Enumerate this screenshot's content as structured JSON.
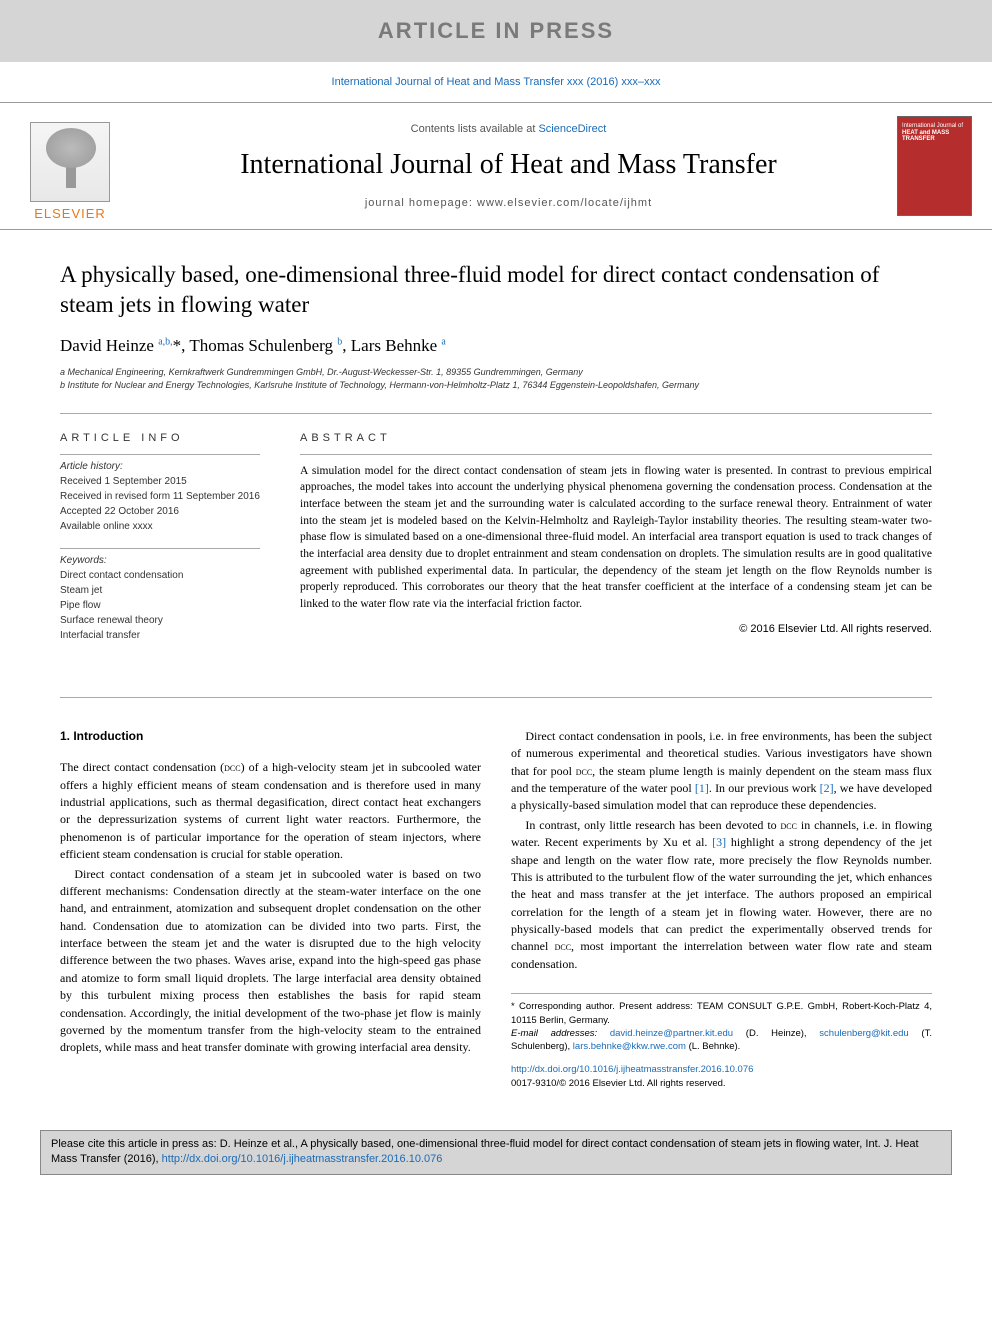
{
  "banner": {
    "text": "ARTICLE IN PRESS"
  },
  "citation_top": "International Journal of Heat and Mass Transfer xxx (2016) xxx–xxx",
  "masthead": {
    "contents_prefix": "Contents lists available at ",
    "contents_link": "ScienceDirect",
    "journal_title": "International Journal of Heat and Mass Transfer",
    "homepage_label": "journal homepage: ",
    "homepage_url": "www.elsevier.com/locate/ijhmt",
    "publisher_name": "ELSEVIER",
    "cover_text_line1": "International Journal of",
    "cover_text_line2": "HEAT and MASS",
    "cover_text_line3": "TRANSFER"
  },
  "paper": {
    "title": "A physically based, one-dimensional three-fluid model for direct contact condensation of steam jets in flowing water",
    "authors_html": "David Heinze <sup>a,b,</sup><span class='star'>*</span>, Thomas Schulenberg <sup>b</sup>, Lars Behnke <sup>a</sup>",
    "affiliations": [
      "a Mechanical Engineering, Kernkraftwerk Gundremmingen GmbH, Dr.-August-Weckesser-Str. 1, 89355 Gundremmingen, Germany",
      "b Institute for Nuclear and Energy Technologies, Karlsruhe Institute of Technology, Hermann-von-Helmholtz-Platz 1, 76344 Eggenstein-Leopoldshafen, Germany"
    ]
  },
  "article_info": {
    "heading": "ARTICLE INFO",
    "history_label": "Article history:",
    "history": [
      "Received 1 September 2015",
      "Received in revised form 11 September 2016",
      "Accepted 22 October 2016",
      "Available online xxxx"
    ],
    "keywords_label": "Keywords:",
    "keywords": [
      "Direct contact condensation",
      "Steam jet",
      "Pipe flow",
      "Surface renewal theory",
      "Interfacial transfer"
    ]
  },
  "abstract": {
    "heading": "ABSTRACT",
    "text": "A simulation model for the direct contact condensation of steam jets in flowing water is presented. In contrast to previous empirical approaches, the model takes into account the underlying physical phenomena governing the condensation process. Condensation at the interface between the steam jet and the surrounding water is calculated according to the surface renewal theory. Entrainment of water into the steam jet is modeled based on the Kelvin-Helmholtz and Rayleigh-Taylor instability theories. The resulting steam-water two-phase flow is simulated based on a one-dimensional three-fluid model. An interfacial area transport equation is used to track changes of the interfacial area density due to droplet entrainment and steam condensation on droplets. The simulation results are in good qualitative agreement with published experimental data. In particular, the dependency of the steam jet length on the flow Reynolds number is properly reproduced. This corroborates our theory that the heat transfer coefficient at the interface of a condensing steam jet can be linked to the water flow rate via the interfacial friction factor.",
    "copyright": "© 2016 Elsevier Ltd. All rights reserved."
  },
  "body": {
    "section1_heading": "1. Introduction",
    "p1": "The direct contact condensation (DCC) of a high-velocity steam jet in subcooled water offers a highly efficient means of steam condensation and is therefore used in many industrial applications, such as thermal degasification, direct contact heat exchangers or the depressurization systems of current light water reactors. Furthermore, the phenomenon is of particular importance for the operation of steam injectors, where efficient steam condensation is crucial for stable operation.",
    "p2": "Direct contact condensation of a steam jet in subcooled water is based on two different mechanisms: Condensation directly at the steam-water interface on the one hand, and entrainment, atomization and subsequent droplet condensation on the other hand. Condensation due to atomization can be divided into two parts. First, the interface between the steam jet and the water is disrupted due to the high velocity difference between the two phases. Waves arise, expand into the high-speed gas phase and atomize to form small liquid droplets. The large interfacial area density obtained by this turbulent mixing process then establishes the basis for rapid steam condensation. Accordingly, the initial development of the two-phase jet flow is mainly governed by the momentum transfer from the high-velocity steam to the entrained droplets, while mass and heat transfer dominate with growing interfacial area density.",
    "p3": "Direct contact condensation in pools, i.e. in free environments, has been the subject of numerous experimental and theoretical studies. Various investigators have shown that for pool DCC, the steam plume length is mainly dependent on the steam mass flux and the temperature of the water pool [1]. In our previous work [2], we have developed a physically-based simulation model that can reproduce these dependencies.",
    "p4": "In contrast, only little research has been devoted to DCC in channels, i.e. in flowing water. Recent experiments by Xu et al. [3] highlight a strong dependency of the jet shape and length on the water flow rate, more precisely the flow Reynolds number. This is attributed to the turbulent flow of the water surrounding the jet, which enhances the heat and mass transfer at the jet interface. The authors proposed an empirical correlation for the length of a steam jet in flowing water. However, there are no physically-based models that can predict the experimentally observed trends for channel DCC, most important the interrelation between water flow rate and steam condensation."
  },
  "footnotes": {
    "corresponding": "* Corresponding author. Present address: TEAM CONSULT G.P.E. GmbH, Robert-Koch-Platz 4, 10115 Berlin, Germany.",
    "emails_label": "E-mail addresses: ",
    "email1": "david.heinze@partner.kit.edu",
    "email1_name": " (D. Heinze), ",
    "email2": "schulenberg@kit.edu",
    "email2_name": " (T. Schulenberg), ",
    "email3": "lars.behnke@kkw.rwe.com",
    "email3_name": " (L. Behnke)."
  },
  "doi": {
    "url": "http://dx.doi.org/10.1016/j.ijheatmasstransfer.2016.10.076",
    "issn_line": "0017-9310/© 2016 Elsevier Ltd. All rights reserved."
  },
  "cite_box": {
    "text_prefix": "Please cite this article in press as: D. Heinze et al., A physically based, one-dimensional three-fluid model for direct contact condensation of steam jets in flowing water, Int. J. Heat Mass Transfer (2016), ",
    "link": "http://dx.doi.org/10.1016/j.ijheatmasstransfer.2016.10.076"
  },
  "colors": {
    "banner_bg": "#d5d5d5",
    "banner_text": "#7a7a7a",
    "link": "#1a6bb8",
    "elsevier_orange": "#e67817",
    "cover_bg": "#b52d2d",
    "border": "#aaaaaa"
  },
  "typography": {
    "body_font": "Georgia, serif",
    "ui_font": "Arial, sans-serif",
    "title_size_pt": 23,
    "journal_title_size_pt": 28,
    "body_size_pt": 12,
    "abstract_size_pt": 11.5,
    "info_size_pt": 10,
    "footnote_size_pt": 9.5
  }
}
